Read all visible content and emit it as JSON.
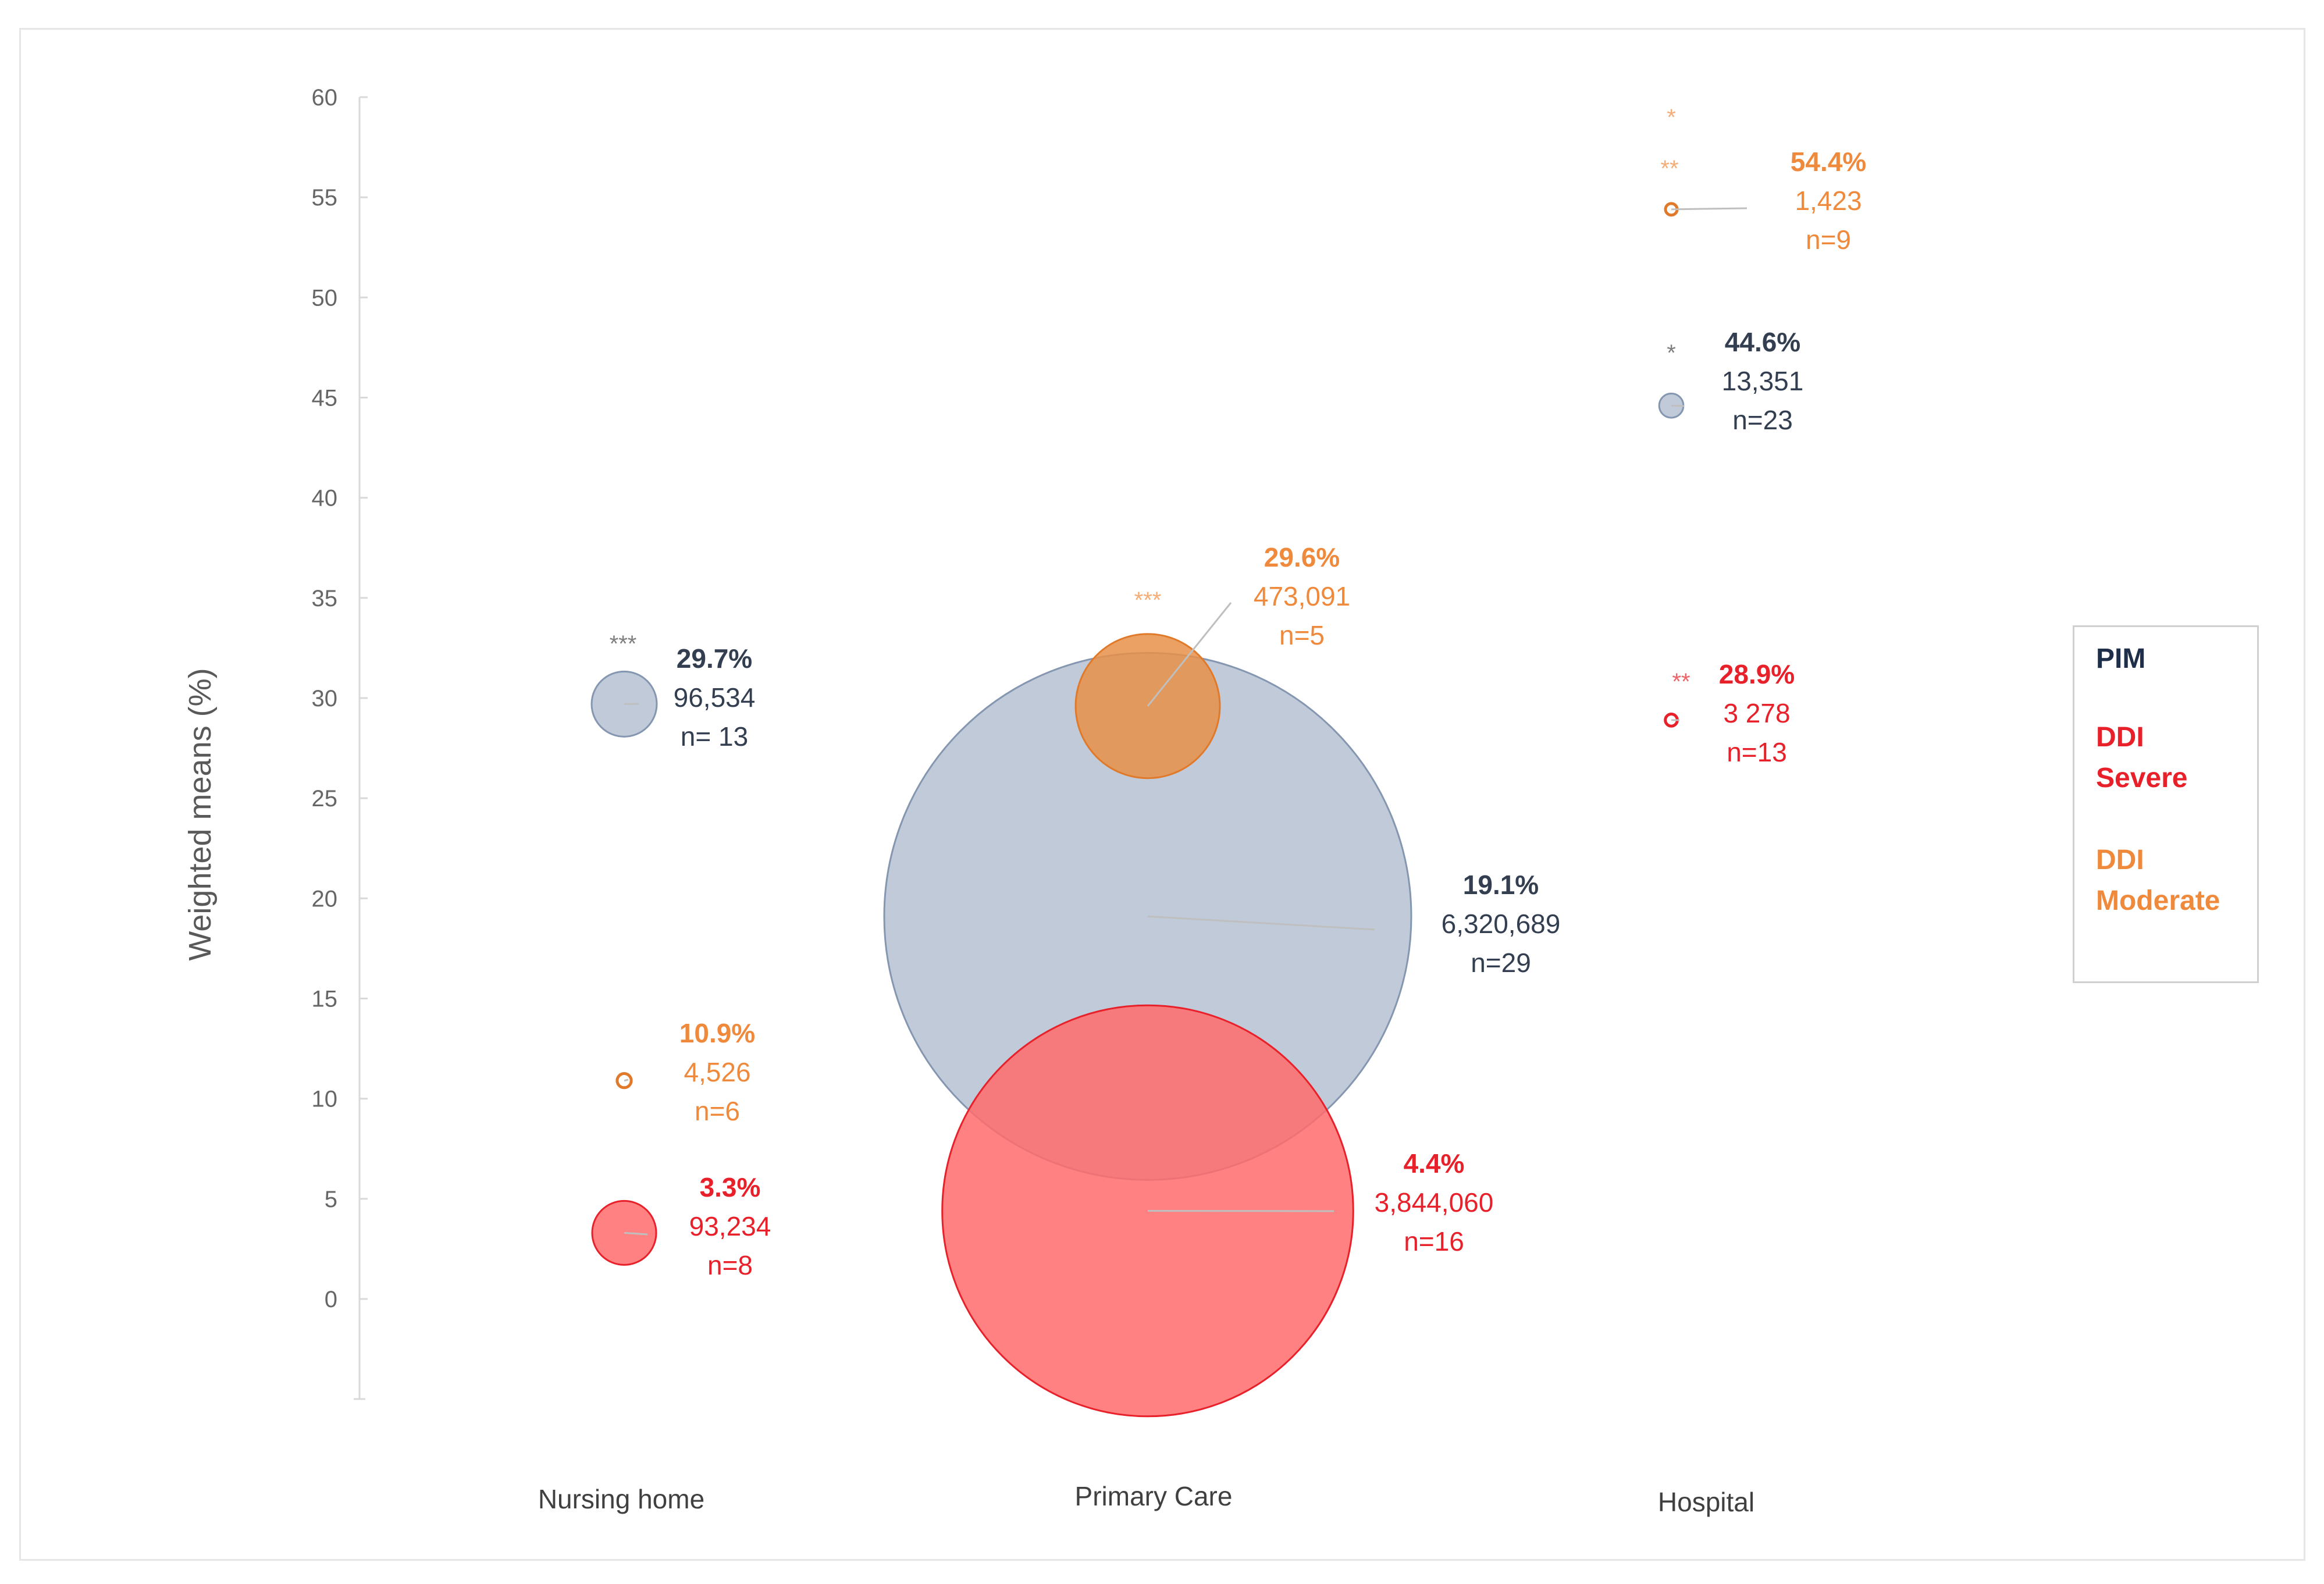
{
  "chart_data": {
    "type": "bubble",
    "ylabel": "Weighted means (%)",
    "ylim": [
      0,
      60
    ],
    "yticks": [
      0,
      5,
      10,
      15,
      20,
      25,
      30,
      35,
      40,
      45,
      50,
      55,
      60
    ],
    "categories": [
      "Nursing home",
      "Primary Care",
      "Hospital"
    ],
    "legend": {
      "position": "right",
      "items": [
        {
          "label": "PIM",
          "color": "#1f2f4a"
        },
        {
          "label": "DDI\nSevere",
          "color": "#e8202a"
        },
        {
          "label": "DDI\nModerate",
          "color": "#ef8a3c"
        }
      ]
    },
    "series": [
      {
        "name": "PIM",
        "color": "#9aa9c0",
        "textColor": "#333f50",
        "points": [
          {
            "category": "Nursing home",
            "y": 29.7,
            "pct": "29.7%",
            "count": "96,534",
            "n": "n= 13",
            "size": 96534,
            "stars": "***"
          },
          {
            "category": "Primary Care",
            "y": 19.1,
            "pct": "19.1%",
            "count": "6,320,689",
            "n": "n=29",
            "size": 6320689,
            "stars": ""
          },
          {
            "category": "Hospital",
            "y": 44.6,
            "pct": "44.6%",
            "count": "13,351",
            "n": "n=23",
            "size": 13351,
            "stars": "*"
          }
        ]
      },
      {
        "name": "DDI Severe",
        "color": "#ff6b6b",
        "textColor": "#e8202a",
        "points": [
          {
            "category": "Nursing home",
            "y": 3.3,
            "pct": "3.3%",
            "count": "93,234",
            "n": "n=8",
            "size": 93234,
            "stars": ""
          },
          {
            "category": "Primary Care",
            "y": 4.4,
            "pct": "4.4%",
            "count": "3,844,060",
            "n": "n=16",
            "size": 3844060,
            "stars": ""
          },
          {
            "category": "Hospital",
            "y": 28.9,
            "pct": "28.9%",
            "count": "3 278",
            "n": "n=13",
            "size": 3278,
            "stars": "**"
          }
        ]
      },
      {
        "name": "DDI Moderate",
        "color": "#e89048",
        "textColor": "#ef8a3c",
        "points": [
          {
            "category": "Nursing home",
            "y": 10.9,
            "pct": "10.9%",
            "count": "4,526",
            "n": "n=6",
            "size": 4526,
            "stars": ""
          },
          {
            "category": "Primary Care",
            "y": 29.6,
            "pct": "29.6%",
            "count": "473,091",
            "n": "n=5",
            "size": 473091,
            "stars": "***"
          },
          {
            "category": "Hospital",
            "y": 54.4,
            "pct": "54.4%",
            "count": "1,423",
            "n": "n=9",
            "size": 1423,
            "stars": "**"
          }
        ]
      }
    ],
    "extra_marks": [
      {
        "category": "Hospital",
        "y": 59.5,
        "stars": "*",
        "color": "#ef8a3c"
      }
    ]
  }
}
